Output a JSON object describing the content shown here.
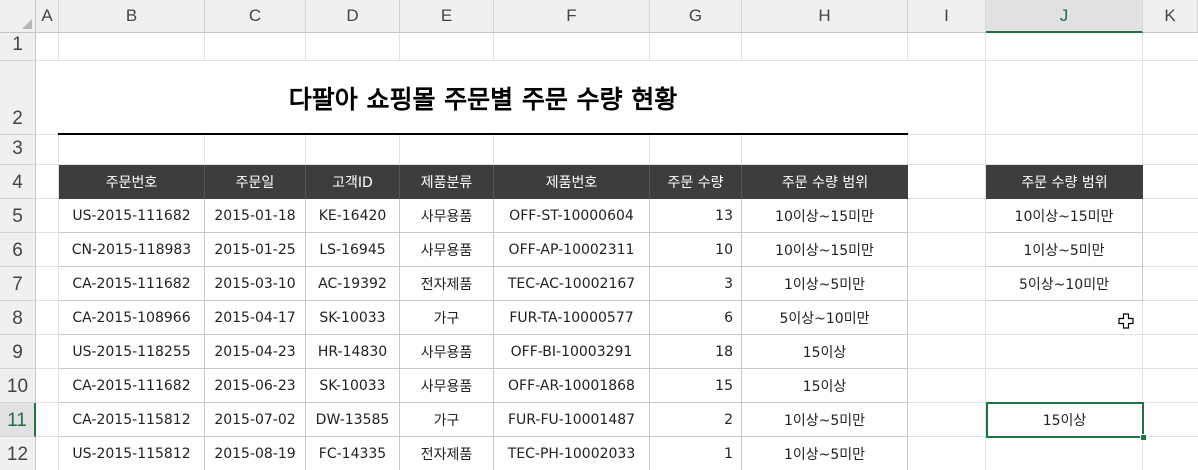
{
  "columns": [
    "A",
    "B",
    "C",
    "D",
    "E",
    "F",
    "G",
    "H",
    "I",
    "J",
    "K"
  ],
  "rows": [
    "1",
    "2",
    "3",
    "4",
    "5",
    "6",
    "7",
    "8",
    "9",
    "10",
    "11",
    "12"
  ],
  "active_column": "J",
  "active_row": "11",
  "title": "다팔아 쇼핑몰 주문별 주문 수량 현황",
  "table": {
    "headers": [
      "주문번호",
      "주문일",
      "고객ID",
      "제품분류",
      "제품번호",
      "주문 수량",
      "주문 수량 범위"
    ],
    "rows": [
      [
        "US-2015-111682",
        "2015-01-18",
        "KE-16420",
        "사무용품",
        "OFF-ST-10000604",
        "13",
        "10이상~15미만"
      ],
      [
        "CN-2015-118983",
        "2015-01-25",
        "LS-16945",
        "사무용품",
        "OFF-AP-10002311",
        "10",
        "10이상~15미만"
      ],
      [
        "CA-2015-111682",
        "2015-03-10",
        "AC-19392",
        "전자제품",
        "TEC-AC-10002167",
        "3",
        "1이상~5미만"
      ],
      [
        "CA-2015-108966",
        "2015-04-17",
        "SK-10033",
        "가구",
        "FUR-TA-10000577",
        "6",
        "5이상~10미만"
      ],
      [
        "US-2015-118255",
        "2015-04-23",
        "HR-14830",
        "사무용품",
        "OFF-BI-10003291",
        "18",
        "15이상"
      ],
      [
        "CA-2015-111682",
        "2015-06-23",
        "SK-10033",
        "사무용품",
        "OFF-AR-10001868",
        "15",
        "15이상"
      ],
      [
        "CA-2015-115812",
        "2015-07-02",
        "DW-13585",
        "가구",
        "FUR-FU-10001487",
        "2",
        "1이상~5미만"
      ],
      [
        "US-2015-115812",
        "2015-08-19",
        "FC-14335",
        "전자제품",
        "TEC-PH-10002033",
        "1",
        "1이상~5미만"
      ]
    ]
  },
  "range_table": {
    "header": "주문 수량 범위",
    "items": [
      "10이상~15미만",
      "1이상~5미만",
      "5이상~10미만"
    ]
  },
  "selected_cell_value": "15이상",
  "colors": {
    "header_bg": "#3d3d3d",
    "header_text": "#ffffff",
    "excel_green": "#217346"
  }
}
